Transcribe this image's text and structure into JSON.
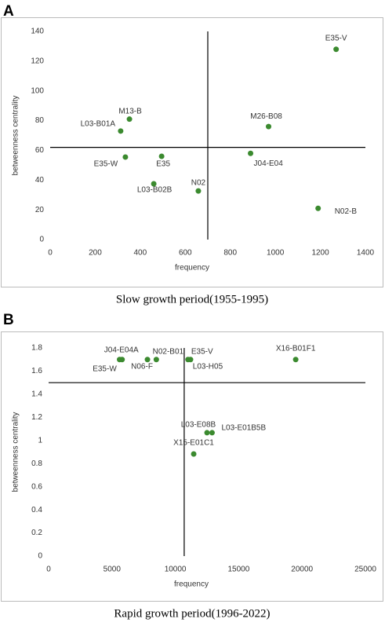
{
  "chart_data": [
    {
      "type": "scatter",
      "panel": "A",
      "caption": "Slow growth period(1955-1995)",
      "xlabel": "frequency",
      "ylabel": "betweenness centrality",
      "color": "#3b8a2f",
      "labels": [
        "E35-V",
        "M13-B",
        "L03-B01A",
        "M26-B08",
        "J04-E04",
        "E35-W",
        "E35",
        "L03-B02B",
        "N02",
        "N02-B"
      ],
      "x": [
        1270,
        352,
        313,
        970,
        890,
        334,
        495,
        460,
        658,
        1190
      ],
      "values": [
        128,
        81,
        73,
        76,
        58,
        55.5,
        56,
        37.5,
        32.7,
        21
      ],
      "vline": 700,
      "hline": 62,
      "xlim": [
        0,
        1400
      ],
      "xticks": [
        0,
        200,
        400,
        600,
        800,
        1000,
        1200,
        1400
      ],
      "ylim": [
        0,
        140
      ],
      "yticks": [
        0,
        20,
        40,
        60,
        80,
        100,
        120,
        140
      ]
    },
    {
      "type": "scatter",
      "panel": "B",
      "caption": "Rapid growth period(1996-2022)",
      "xlabel": "frequency",
      "ylabel": "betweenness centrality",
      "color": "#3b8a2f",
      "labels": [
        "J04-E04A",
        "E35-W",
        "N06-F",
        "N02-B01",
        "E35-V",
        "L03-H05",
        "X16-B01F1",
        "L03-E08B",
        "L03-E01B5B",
        "X15-E01C1"
      ],
      "x": [
        5800,
        5600,
        7800,
        8500,
        11000,
        11200,
        19500,
        12500,
        12900,
        11450
      ],
      "values": [
        1.7,
        1.7,
        1.7,
        1.7,
        1.7,
        1.7,
        1.7,
        1.067,
        1.067,
        0.883
      ],
      "vline": 10700,
      "hline": 1.5,
      "xlim": [
        0,
        25000
      ],
      "xticks": [
        0,
        5000,
        10000,
        15000,
        20000,
        25000
      ],
      "ylim": [
        0,
        1.8
      ],
      "yticks": [
        0,
        0.2,
        0.4,
        0.6,
        0.8,
        1,
        1.2,
        1.4,
        1.6,
        1.8
      ]
    }
  ]
}
